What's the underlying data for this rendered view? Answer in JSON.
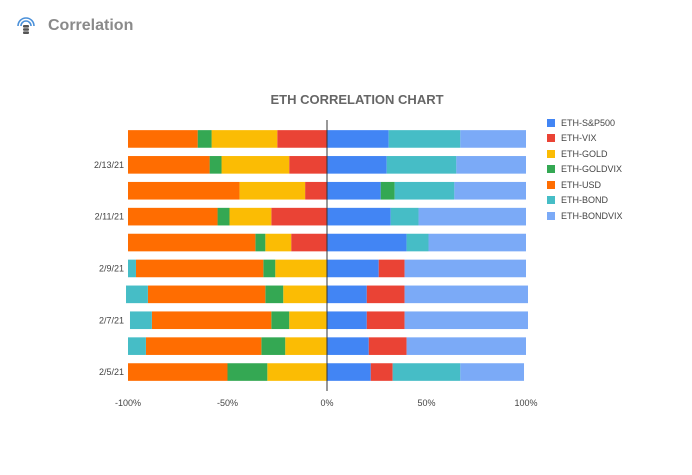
{
  "header": {
    "title": "Correlation",
    "icon": "database-signal-icon"
  },
  "chart_data": {
    "type": "bar",
    "orientation": "horizontal",
    "stacked": "diverging",
    "title": "ETH CORRELATION CHART",
    "xlabel": "",
    "ylabel": "",
    "xlim": [
      -1,
      1
    ],
    "x_ticks": [
      "-100%",
      "-50%",
      "0%",
      "50%",
      "100%"
    ],
    "grid": false,
    "legend_position": "right",
    "categories": [
      "",
      "2/13/21",
      "",
      "2/11/21",
      "",
      "2/9/21",
      "",
      "2/7/21",
      "",
      "2/5/21"
    ],
    "series": [
      {
        "name": "ETH-S&P500",
        "color": "#4285f4",
        "values": [
          0.31,
          0.3,
          0.27,
          0.32,
          0.4,
          0.26,
          0.2,
          0.2,
          0.21,
          0.22
        ]
      },
      {
        "name": "ETH-VIX",
        "color": "#ea4335",
        "values": [
          -0.25,
          -0.19,
          -0.11,
          -0.28,
          -0.18,
          0.13,
          0.19,
          0.19,
          0.19,
          0.11
        ]
      },
      {
        "name": "ETH-GOLD",
        "color": "#fbbc04",
        "values": [
          -0.33,
          -0.34,
          -0.33,
          -0.21,
          -0.13,
          -0.26,
          -0.22,
          -0.19,
          -0.21,
          -0.3
        ]
      },
      {
        "name": "ETH-GOLDVIX",
        "color": "#34a853",
        "values": [
          -0.07,
          -0.06,
          0.07,
          -0.06,
          -0.05,
          -0.06,
          -0.09,
          -0.09,
          -0.12,
          -0.2
        ]
      },
      {
        "name": "ETH-USD",
        "color": "#ff6d01",
        "values": [
          -0.35,
          -0.41,
          -0.56,
          -0.45,
          -0.64,
          -0.64,
          -0.59,
          -0.6,
          -0.58,
          -0.5
        ]
      },
      {
        "name": "ETH-BOND",
        "color": "#46bdc6",
        "values": [
          0.36,
          0.35,
          0.3,
          0.14,
          0.11,
          -0.04,
          -0.11,
          -0.11,
          -0.09,
          0.34
        ]
      },
      {
        "name": "ETH-BONDVIX",
        "color": "#7baaf7",
        "values": [
          0.33,
          0.35,
          0.36,
          0.54,
          0.49,
          0.61,
          0.62,
          0.62,
          0.6,
          0.32
        ]
      }
    ]
  }
}
